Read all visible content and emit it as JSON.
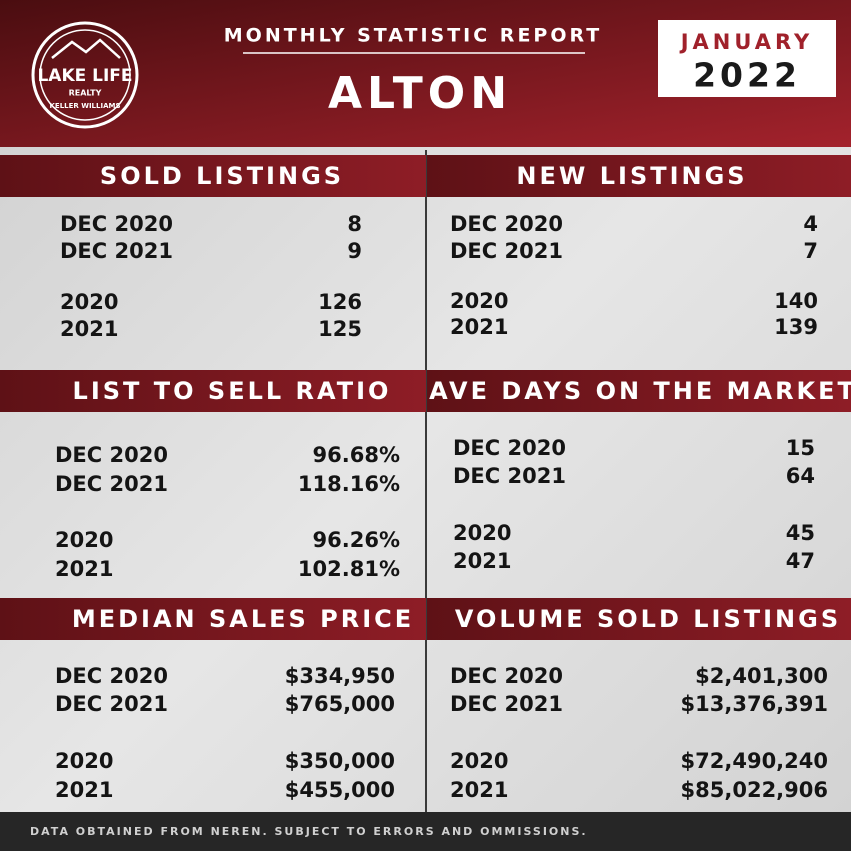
{
  "header": {
    "logo": {
      "name": "LAKE LIFE",
      "sub": "REALTY",
      "brand": "KELLER WILLIAMS"
    },
    "report_title": "MONTHLY STATISTIC REPORT",
    "town": "ALTON",
    "month": "JANUARY",
    "year": "2022"
  },
  "sections": [
    {
      "title": "SOLD LISTINGS",
      "rows": [
        {
          "label": "DEC 2020",
          "value": "8"
        },
        {
          "label": "DEC 2021",
          "value": "9"
        },
        {
          "label": "2020",
          "value": "126"
        },
        {
          "label": "2021",
          "value": "125"
        }
      ]
    },
    {
      "title": "NEW LISTINGS",
      "rows": [
        {
          "label": "DEC 2020",
          "value": "4"
        },
        {
          "label": "DEC 2021",
          "value": "7"
        },
        {
          "label": "2020",
          "value": "140"
        },
        {
          "label": "2021",
          "value": "139"
        }
      ]
    },
    {
      "title": "LIST TO SELL RATIO",
      "rows": [
        {
          "label": "DEC 2020",
          "value": "96.68%"
        },
        {
          "label": "DEC 2021",
          "value": "118.16%"
        },
        {
          "label": "2020",
          "value": "96.26%"
        },
        {
          "label": "2021",
          "value": "102.81%"
        }
      ]
    },
    {
      "title": "AVE DAYS ON THE MARKET",
      "rows": [
        {
          "label": "DEC 2020",
          "value": "15"
        },
        {
          "label": "DEC 2021",
          "value": "64"
        },
        {
          "label": "2020",
          "value": "45"
        },
        {
          "label": "2021",
          "value": "47"
        }
      ]
    },
    {
      "title": "MEDIAN SALES PRICE",
      "rows": [
        {
          "label": "DEC 2020",
          "value": "$334,950"
        },
        {
          "label": "DEC 2021",
          "value": "$765,000"
        },
        {
          "label": "2020",
          "value": "$350,000"
        },
        {
          "label": "2021",
          "value": "$455,000"
        }
      ]
    },
    {
      "title": "VOLUME SOLD LISTINGS",
      "rows": [
        {
          "label": "DEC 2020",
          "value": "$2,401,300"
        },
        {
          "label": "DEC 2021",
          "value": "$13,376,391"
        },
        {
          "label": "2020",
          "value": "$72,490,240"
        },
        {
          "label": "2021",
          "value": "$85,022,906"
        }
      ]
    }
  ],
  "footer": "DATA OBTAINED FROM NEREN. SUBJECT TO ERRORS AND OMMISSIONS."
}
